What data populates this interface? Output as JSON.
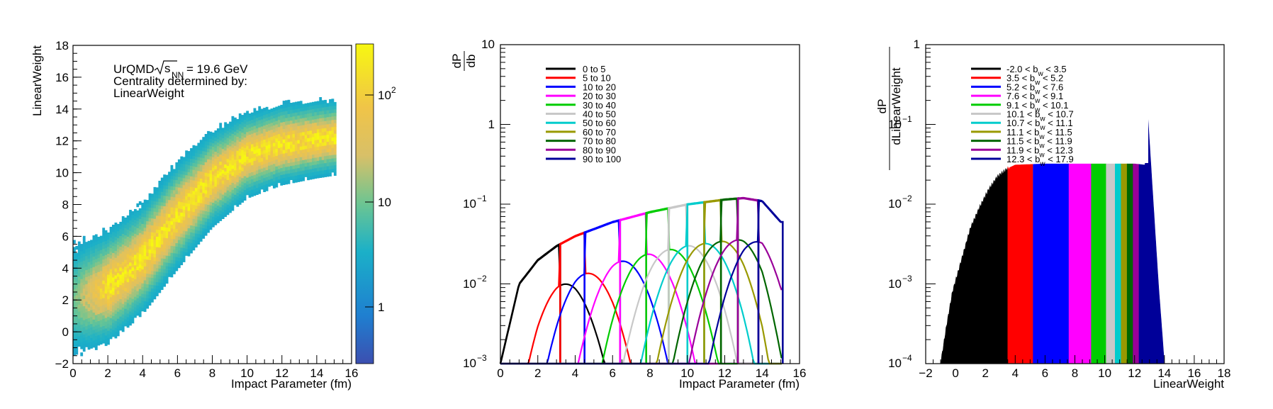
{
  "chart_data": [
    {
      "type": "heatmap",
      "title_lines": [
        "UrQMD",
        "Centrality determined by:",
        "LinearWeight"
      ],
      "sqrt_label": "s",
      "sqrt_sub": "NN",
      "energy_text": "= 19.6 GeV",
      "xlabel": "Impact Parameter (fm)",
      "ylabel": "LinearWeight",
      "xlim": [
        0,
        16
      ],
      "ylim": [
        -2,
        18
      ],
      "x_ticks": [
        "0",
        "2",
        "4",
        "6",
        "8",
        "10",
        "12",
        "14",
        "16"
      ],
      "y_ticks": [
        "−2",
        "0",
        "2",
        "4",
        "6",
        "8",
        "10",
        "12",
        "14",
        "16",
        "18"
      ],
      "color_scale": {
        "type": "log",
        "range": [
          0.3,
          400
        ],
        "tick_values": [
          1,
          10,
          100
        ]
      },
      "colorbar_ticks": {
        "t1": "1",
        "t10": "10",
        "t100_base": "10",
        "t100_exp": "2"
      },
      "band": {
        "b_range": [
          0,
          15
        ],
        "mean_at_b": [
          [
            0,
            2.0
          ],
          [
            2,
            2.8
          ],
          [
            4,
            4.6
          ],
          [
            6,
            7.3
          ],
          [
            8,
            9.6
          ],
          [
            10,
            11.1
          ],
          [
            12,
            11.8
          ],
          [
            14,
            12.1
          ],
          [
            15,
            12.2
          ]
        ],
        "half_width": [
          [
            0,
            2.2
          ],
          [
            6,
            2.0
          ],
          [
            10,
            1.6
          ],
          [
            15,
            1.4
          ]
        ]
      }
    },
    {
      "type": "line",
      "ylabel_num": "dP",
      "ylabel_den": "db",
      "xlabel": "Impact Parameter (fm)",
      "xlim": [
        0,
        16
      ],
      "ylim": [
        0.001,
        10
      ],
      "y_scale": "log",
      "x_ticks": [
        "0",
        "2",
        "4",
        "6",
        "8",
        "10",
        "12",
        "14",
        "16"
      ],
      "y_ticks": {
        "t_m3_base": "10",
        "t_m3_exp": "−3",
        "t_m2_base": "10",
        "t_m2_exp": "−2",
        "t_m1_base": "10",
        "t_m1_exp": "−1",
        "t_0": "1",
        "t_1": "10"
      },
      "series": [
        {
          "name": "0 to 5",
          "color": "#000000"
        },
        {
          "name": "5 to 10",
          "color": "#ff0000"
        },
        {
          "name": "10 to 20",
          "color": "#0000ff"
        },
        {
          "name": "20 to 30",
          "color": "#ff00ff"
        },
        {
          "name": "30 to 40",
          "color": "#00cc00"
        },
        {
          "name": "40 to 50",
          "color": "#c8c8c8"
        },
        {
          "name": "50 to 60",
          "color": "#00cccc"
        },
        {
          "name": "60 to 70",
          "color": "#999900"
        },
        {
          "name": "70 to 80",
          "color": "#006600"
        },
        {
          "name": "80 to 90",
          "color": "#990099"
        },
        {
          "name": "90 to 100",
          "color": "#000099"
        }
      ],
      "bin_edges_b": [
        0,
        3.2,
        4.5,
        6.4,
        7.8,
        9.0,
        10.0,
        10.9,
        11.8,
        12.7,
        13.8,
        15.1
      ],
      "envelope_points": [
        [
          0,
          0.001
        ],
        [
          1,
          0.01
        ],
        [
          2,
          0.02
        ],
        [
          3,
          0.03
        ],
        [
          4,
          0.04
        ],
        [
          6,
          0.06
        ],
        [
          8,
          0.08
        ],
        [
          10,
          0.1
        ],
        [
          12,
          0.115
        ],
        [
          13,
          0.12
        ],
        [
          14,
          0.11
        ],
        [
          15,
          0.06
        ]
      ],
      "spread_sigma_fm": 1.0
    },
    {
      "type": "area",
      "ylabel_num": "dP",
      "ylabel_den": "dLinearWeight",
      "xlabel": "LinearWeight",
      "xlim": [
        -2,
        18
      ],
      "ylim": [
        0.0001,
        1
      ],
      "y_scale": "log",
      "x_ticks": [
        "−2",
        "0",
        "2",
        "4",
        "6",
        "8",
        "10",
        "12",
        "14",
        "16",
        "18"
      ],
      "y_ticks": {
        "t_m4_base": "10",
        "t_m4_exp": "−4",
        "t_m3_base": "10",
        "t_m3_exp": "−3",
        "t_m2_base": "10",
        "t_m2_exp": "−2",
        "t_m1_base": "10",
        "t_m1_exp": "−1",
        "t_0": "1"
      },
      "b_sub": "w",
      "series": [
        {
          "lo": "-2.0",
          "hi": "3.5",
          "color": "#000000"
        },
        {
          "lo": "3.5",
          "hi": "5.2",
          "color": "#ff0000"
        },
        {
          "lo": "5.2",
          "hi": "7.6",
          "color": "#0000ff"
        },
        {
          "lo": "7.6",
          "hi": "9.1",
          "color": "#ff00ff"
        },
        {
          "lo": "9.1",
          "hi": "10.1",
          "color": "#00cc00"
        },
        {
          "lo": "10.1",
          "hi": "10.7",
          "color": "#c8c8c8"
        },
        {
          "lo": "10.7",
          "hi": "11.1",
          "color": "#00cccc"
        },
        {
          "lo": "11.1",
          "hi": "11.5",
          "color": "#999900"
        },
        {
          "lo": "11.5",
          "hi": "11.9",
          "color": "#006600"
        },
        {
          "lo": "11.9",
          "hi": "12.3",
          "color": "#990099"
        },
        {
          "lo": "12.3",
          "hi": "17.9",
          "color": "#000099"
        }
      ],
      "distribution": [
        [
          -1.0,
          0.0001
        ],
        [
          -0.6,
          0.0003
        ],
        [
          -0.2,
          0.0008
        ],
        [
          0.4,
          0.002
        ],
        [
          1.0,
          0.005
        ],
        [
          1.6,
          0.009
        ],
        [
          2.2,
          0.015
        ],
        [
          2.8,
          0.022
        ],
        [
          3.5,
          0.028
        ],
        [
          4.0,
          0.031
        ],
        [
          6.0,
          0.032
        ],
        [
          9.0,
          0.032
        ],
        [
          12.0,
          0.032
        ],
        [
          12.7,
          0.031
        ],
        [
          12.9,
          0.12
        ],
        [
          13.1,
          0.03
        ],
        [
          13.6,
          0.001
        ],
        [
          14.0,
          0.0001
        ]
      ]
    }
  ]
}
